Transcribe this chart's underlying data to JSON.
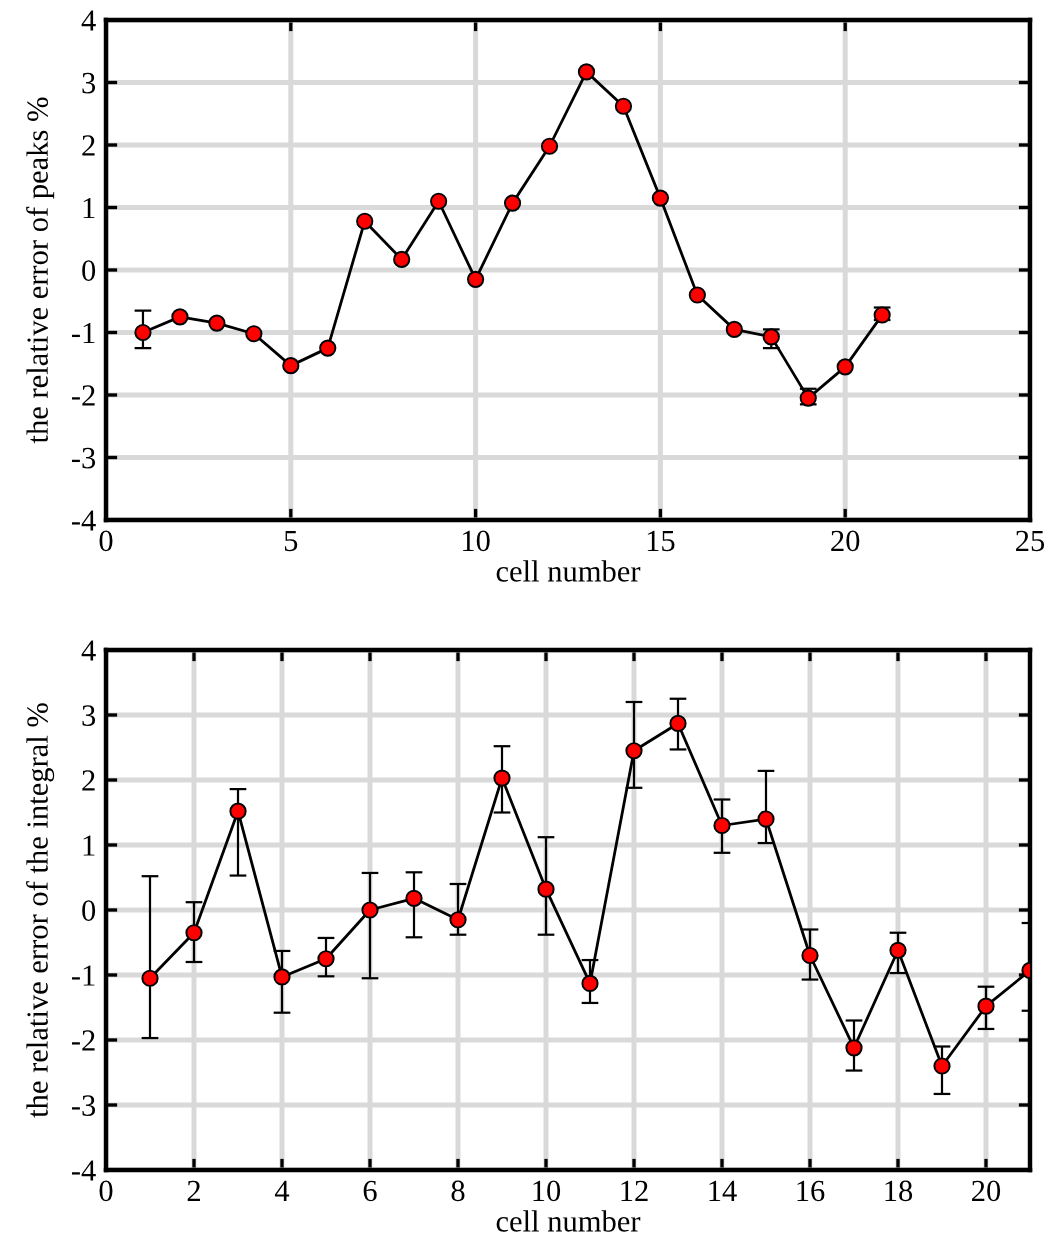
{
  "chart_data": [
    {
      "type": "line",
      "xlabel": "cell number",
      "ylabel": "the relative error of peaks %",
      "x": [
        1,
        2,
        3,
        4,
        5,
        6,
        7,
        8,
        9,
        10,
        11,
        12,
        13,
        14,
        15,
        16,
        17,
        18,
        19,
        20,
        21
      ],
      "series": [
        {
          "color": "#ff0000",
          "values": [
            -1.0,
            -0.75,
            -0.85,
            -1.02,
            -1.53,
            -1.25,
            0.78,
            0.17,
            1.1,
            -0.15,
            1.07,
            1.98,
            3.17,
            2.62,
            1.15,
            -0.4,
            -0.95,
            -1.07,
            -2.05,
            -1.55,
            -0.72
          ],
          "errors": [
            [
              -1.25,
              -0.65
            ],
            null,
            null,
            null,
            null,
            null,
            null,
            null,
            null,
            null,
            null,
            null,
            null,
            null,
            null,
            null,
            null,
            [
              -1.25,
              -0.95
            ],
            [
              -2.15,
              -1.9
            ],
            null,
            [
              -0.8,
              -0.6
            ]
          ]
        }
      ],
      "xlim": [
        0,
        25
      ],
      "xticks": [
        0,
        5,
        10,
        15,
        20,
        25
      ],
      "ylim": [
        -4,
        4
      ],
      "yticks": [
        -4,
        -3,
        -2,
        -1,
        0,
        1,
        2,
        3,
        4
      ],
      "grid": true,
      "marker": "circle",
      "line_style": "solid"
    },
    {
      "type": "line",
      "xlabel": "cell number",
      "ylabel": "the relative error of the integral %",
      "x": [
        1,
        2,
        3,
        4,
        5,
        6,
        7,
        8,
        9,
        10,
        11,
        12,
        13,
        14,
        15,
        16,
        17,
        18,
        19,
        20,
        21
      ],
      "series": [
        {
          "color": "#ff0000",
          "values": [
            -1.05,
            -0.35,
            1.52,
            -1.03,
            -0.75,
            0.0,
            0.18,
            -0.15,
            2.03,
            0.32,
            -1.13,
            2.45,
            2.87,
            1.3,
            1.4,
            -0.7,
            -2.12,
            -0.62,
            -2.4,
            -1.48,
            -0.93
          ],
          "errors": [
            [
              -1.97,
              0.52
            ],
            [
              -0.8,
              0.12
            ],
            [
              0.53,
              1.86
            ],
            [
              -1.58,
              -0.63
            ],
            [
              -1.02,
              -0.43
            ],
            [
              -1.05,
              0.57
            ],
            [
              -0.42,
              0.58
            ],
            [
              -0.38,
              0.4
            ],
            [
              1.5,
              2.52
            ],
            [
              -0.38,
              1.12
            ],
            [
              -1.43,
              -0.77
            ],
            [
              1.88,
              3.2
            ],
            [
              2.47,
              3.25
            ],
            [
              0.88,
              1.7
            ],
            [
              1.03,
              2.14
            ],
            [
              -1.07,
              -0.3
            ],
            [
              -2.47,
              -1.7
            ],
            [
              -0.97,
              -0.35
            ],
            [
              -2.83,
              -2.1
            ],
            [
              -1.83,
              -1.18
            ],
            [
              -1.55,
              -0.2
            ]
          ]
        }
      ],
      "xlim": [
        0,
        21
      ],
      "xticks": [
        0,
        2,
        4,
        6,
        8,
        10,
        12,
        14,
        16,
        18,
        20
      ],
      "ylim": [
        -4,
        4
      ],
      "yticks": [
        -4,
        -3,
        -2,
        -1,
        0,
        1,
        2,
        3,
        4
      ],
      "grid": true,
      "marker": "circle",
      "line_style": "solid"
    }
  ]
}
